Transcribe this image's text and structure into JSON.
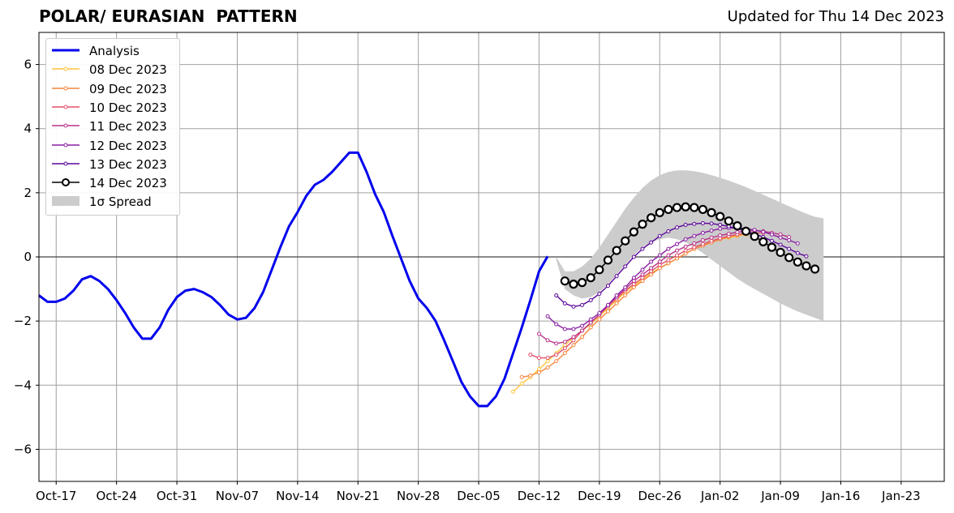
{
  "header": {
    "title": "POLAR/ EURASIAN  PATTERN",
    "updated": "Updated for Thu 14 Dec 2023"
  },
  "chart_data": {
    "type": "line",
    "title": "POLAR/ EURASIAN  PATTERN",
    "xlabel": "",
    "ylabel": "",
    "xlim": [
      "2023-10-15",
      "2024-01-28"
    ],
    "ylim": [
      -7,
      7
    ],
    "grid": true,
    "legend_position": "upper-left",
    "x_ticks": [
      "Oct-17",
      "Oct-24",
      "Oct-31",
      "Nov-07",
      "Nov-14",
      "Nov-21",
      "Nov-28",
      "Dec-05",
      "Dec-12",
      "Dec-19",
      "Dec-26",
      "Jan-02",
      "Jan-09",
      "Jan-16",
      "Jan-23"
    ],
    "y_ticks": [
      "−6",
      "−4",
      "−2",
      "0",
      "2",
      "4",
      "6"
    ],
    "series": [
      {
        "name": "Analysis",
        "color": "#0000ee",
        "marker": "none",
        "x": [
          "2023-10-15",
          "2023-10-16",
          "2023-10-17",
          "2023-10-18",
          "2023-10-19",
          "2023-10-20",
          "2023-10-21",
          "2023-10-22",
          "2023-10-23",
          "2023-10-24",
          "2023-10-25",
          "2023-10-26",
          "2023-10-27",
          "2023-10-28",
          "2023-10-29",
          "2023-10-30",
          "2023-10-31",
          "2023-11-01",
          "2023-11-02",
          "2023-11-03",
          "2023-11-04",
          "2023-11-05",
          "2023-11-06",
          "2023-11-07",
          "2023-11-08",
          "2023-11-09",
          "2023-11-10",
          "2023-11-11",
          "2023-11-12",
          "2023-11-13",
          "2023-11-14",
          "2023-11-15",
          "2023-11-16",
          "2023-11-17",
          "2023-11-18",
          "2023-11-19",
          "2023-11-20",
          "2023-11-21",
          "2023-11-22",
          "2023-11-23",
          "2023-11-24",
          "2023-11-25",
          "2023-11-26",
          "2023-11-27",
          "2023-11-28",
          "2023-11-29",
          "2023-11-30",
          "2023-12-01",
          "2023-12-02",
          "2023-12-03",
          "2023-12-04",
          "2023-12-05",
          "2023-12-06",
          "2023-12-07",
          "2023-12-08",
          "2023-12-09",
          "2023-12-10",
          "2023-12-11",
          "2023-12-12",
          "2023-12-13",
          "2023-12-14"
        ],
        "values": [
          -1.2,
          -1.4,
          -1.4,
          -1.3,
          -1.05,
          -0.7,
          -0.6,
          -0.75,
          -1.0,
          -1.35,
          -1.75,
          -2.2,
          -2.55,
          -2.55,
          -2.2,
          -1.65,
          -1.25,
          -1.05,
          -1.0,
          -1.1,
          -1.25,
          -1.5,
          -1.8,
          -1.95,
          -1.9,
          -1.6,
          -1.1,
          -0.4,
          0.3,
          0.95,
          1.4,
          1.9,
          2.25,
          2.4,
          2.65,
          2.95,
          3.25,
          3.25,
          2.65,
          1.95,
          1.4,
          0.65,
          -0.05,
          -0.75,
          -1.3,
          -1.6,
          -2.0,
          -2.6,
          -3.25,
          -3.9,
          -4.35,
          -4.65,
          -4.65,
          -4.35,
          -3.8,
          -3.0,
          -2.2,
          -1.35,
          -0.45,
          0.02,
          null
        ]
      },
      {
        "name": "08 Dec 2023",
        "color": "#fdc43a",
        "marker": "dot",
        "x": [
          "2023-12-09",
          "2023-12-10",
          "2023-12-11",
          "2023-12-12",
          "2023-12-13",
          "2023-12-14",
          "2023-12-15",
          "2023-12-16",
          "2023-12-17",
          "2023-12-18",
          "2023-12-19",
          "2023-12-20",
          "2023-12-21",
          "2023-12-22",
          "2023-12-23",
          "2023-12-24",
          "2023-12-25",
          "2023-12-26",
          "2023-12-27",
          "2023-12-28",
          "2023-12-29",
          "2023-12-30",
          "2023-12-31",
          "2024-01-01",
          "2024-01-02",
          "2024-01-03",
          "2024-01-04",
          "2024-01-05"
        ],
        "values": [
          -4.2,
          -3.95,
          -3.75,
          -3.5,
          -3.25,
          -3.0,
          -2.75,
          -2.5,
          -2.3,
          -2.1,
          -1.85,
          -1.6,
          -1.35,
          -1.1,
          -0.9,
          -0.7,
          -0.5,
          -0.35,
          -0.2,
          -0.05,
          0.1,
          0.25,
          0.35,
          0.45,
          0.55,
          0.6,
          0.65,
          0.7
        ]
      },
      {
        "name": "09 Dec 2023",
        "color": "#f5853d",
        "marker": "dot",
        "x": [
          "2023-12-10",
          "2023-12-11",
          "2023-12-12",
          "2023-12-13",
          "2023-12-14",
          "2023-12-15",
          "2023-12-16",
          "2023-12-17",
          "2023-12-18",
          "2023-12-19",
          "2023-12-20",
          "2023-12-21",
          "2023-12-22",
          "2023-12-23",
          "2023-12-24",
          "2023-12-25",
          "2023-12-26",
          "2023-12-27",
          "2023-12-28",
          "2023-12-29",
          "2023-12-30",
          "2023-12-31",
          "2024-01-01",
          "2024-01-02",
          "2024-01-03",
          "2024-01-04",
          "2024-01-05",
          "2024-01-06"
        ],
        "values": [
          -3.75,
          -3.7,
          -3.6,
          -3.45,
          -3.25,
          -3.0,
          -2.75,
          -2.5,
          -2.2,
          -1.95,
          -1.7,
          -1.45,
          -1.2,
          -0.95,
          -0.75,
          -0.55,
          -0.35,
          -0.2,
          -0.05,
          0.1,
          0.25,
          0.35,
          0.45,
          0.55,
          0.62,
          0.68,
          0.72,
          0.75
        ]
      },
      {
        "name": "10 Dec 2023",
        "color": "#e2506b",
        "marker": "dot",
        "x": [
          "2023-12-11",
          "2023-12-12",
          "2023-12-13",
          "2023-12-14",
          "2023-12-15",
          "2023-12-16",
          "2023-12-17",
          "2023-12-18",
          "2023-12-19",
          "2023-12-20",
          "2023-12-21",
          "2023-12-22",
          "2023-12-23",
          "2023-12-24",
          "2023-12-25",
          "2023-12-26",
          "2023-12-27",
          "2023-12-28",
          "2023-12-29",
          "2023-12-30",
          "2023-12-31",
          "2024-01-01",
          "2024-01-02",
          "2024-01-03",
          "2024-01-04",
          "2024-01-05",
          "2024-01-06",
          "2024-01-07"
        ],
        "values": [
          -3.05,
          -3.15,
          -3.15,
          -3.05,
          -2.85,
          -2.6,
          -2.3,
          -2.05,
          -1.8,
          -1.55,
          -1.3,
          -1.05,
          -0.85,
          -0.65,
          -0.45,
          -0.25,
          -0.1,
          0.05,
          0.2,
          0.3,
          0.4,
          0.5,
          0.58,
          0.65,
          0.7,
          0.73,
          0.75,
          0.75
        ]
      },
      {
        "name": "11 Dec 2023",
        "color": "#b83289",
        "marker": "dot",
        "x": [
          "2023-12-12",
          "2023-12-13",
          "2023-12-14",
          "2023-12-15",
          "2023-12-16",
          "2023-12-17",
          "2023-12-18",
          "2023-12-19",
          "2023-12-20",
          "2023-12-21",
          "2023-12-22",
          "2023-12-23",
          "2023-12-24",
          "2023-12-25",
          "2023-12-26",
          "2023-12-27",
          "2023-12-28",
          "2023-12-29",
          "2023-12-30",
          "2023-12-31",
          "2024-01-01",
          "2024-01-02",
          "2024-01-03",
          "2024-01-04",
          "2024-01-05",
          "2024-01-06",
          "2024-01-07",
          "2024-01-08",
          "2024-01-09",
          "2024-01-10"
        ],
        "values": [
          -2.4,
          -2.6,
          -2.7,
          -2.65,
          -2.5,
          -2.3,
          -2.05,
          -1.8,
          -1.5,
          -1.25,
          -1.0,
          -0.75,
          -0.55,
          -0.35,
          -0.15,
          0.05,
          0.2,
          0.32,
          0.42,
          0.52,
          0.6,
          0.67,
          0.72,
          0.77,
          0.8,
          0.82,
          0.8,
          0.75,
          0.7,
          0.62
        ]
      },
      {
        "name": "12 Dec 2023",
        "color": "#8b1fa4",
        "marker": "dot",
        "x": [
          "2023-12-13",
          "2023-12-14",
          "2023-12-15",
          "2023-12-16",
          "2023-12-17",
          "2023-12-18",
          "2023-12-19",
          "2023-12-20",
          "2023-12-21",
          "2023-12-22",
          "2023-12-23",
          "2023-12-24",
          "2023-12-25",
          "2023-12-26",
          "2023-12-27",
          "2023-12-28",
          "2023-12-29",
          "2023-12-30",
          "2023-12-31",
          "2024-01-01",
          "2024-01-02",
          "2024-01-03",
          "2024-01-04",
          "2024-01-05",
          "2024-01-06",
          "2024-01-07",
          "2024-01-08",
          "2024-01-09",
          "2024-01-10",
          "2024-01-11"
        ],
        "values": [
          -1.85,
          -2.1,
          -2.25,
          -2.25,
          -2.15,
          -1.95,
          -1.75,
          -1.5,
          -1.2,
          -0.95,
          -0.65,
          -0.4,
          -0.15,
          0.05,
          0.25,
          0.4,
          0.55,
          0.65,
          0.75,
          0.82,
          0.88,
          0.9,
          0.9,
          0.88,
          0.84,
          0.78,
          0.7,
          0.6,
          0.52,
          0.42
        ]
      },
      {
        "name": "13 Dec 2023",
        "color": "#5b079a",
        "marker": "dot",
        "x": [
          "2023-12-14",
          "2023-12-15",
          "2023-12-16",
          "2023-12-17",
          "2023-12-18",
          "2023-12-19",
          "2023-12-20",
          "2023-12-21",
          "2023-12-22",
          "2023-12-23",
          "2023-12-24",
          "2023-12-25",
          "2023-12-26",
          "2023-12-27",
          "2023-12-28",
          "2023-12-29",
          "2023-12-30",
          "2023-12-31",
          "2024-01-01",
          "2024-01-02",
          "2024-01-03",
          "2024-01-04",
          "2024-01-05",
          "2024-01-06",
          "2024-01-07",
          "2024-01-08",
          "2024-01-09",
          "2024-01-10",
          "2024-01-11",
          "2024-01-12"
        ],
        "values": [
          -1.2,
          -1.45,
          -1.55,
          -1.5,
          -1.35,
          -1.15,
          -0.9,
          -0.6,
          -0.3,
          0.0,
          0.25,
          0.45,
          0.65,
          0.8,
          0.92,
          1.0,
          1.03,
          1.05,
          1.04,
          1.0,
          0.95,
          0.88,
          0.8,
          0.72,
          0.62,
          0.5,
          0.38,
          0.25,
          0.12,
          0.02
        ]
      },
      {
        "name": "14 Dec 2023",
        "color": "#000000",
        "marker": "circle",
        "x": [
          "2023-12-15",
          "2023-12-16",
          "2023-12-17",
          "2023-12-18",
          "2023-12-19",
          "2023-12-20",
          "2023-12-21",
          "2023-12-22",
          "2023-12-23",
          "2023-12-24",
          "2023-12-25",
          "2023-12-26",
          "2023-12-27",
          "2023-12-28",
          "2023-12-29",
          "2023-12-30",
          "2023-12-31",
          "2024-01-01",
          "2024-01-02",
          "2024-01-03",
          "2024-01-04",
          "2024-01-05",
          "2024-01-06",
          "2024-01-07",
          "2024-01-08",
          "2024-01-09",
          "2024-01-10",
          "2024-01-11",
          "2024-01-12",
          "2024-01-13",
          "2024-01-14"
        ],
        "values": [
          -0.75,
          -0.85,
          -0.8,
          -0.65,
          -0.4,
          -0.1,
          0.2,
          0.5,
          0.78,
          1.02,
          1.22,
          1.38,
          1.48,
          1.54,
          1.56,
          1.54,
          1.48,
          1.38,
          1.26,
          1.12,
          0.97,
          0.8,
          0.64,
          0.47,
          0.3,
          0.14,
          -0.02,
          -0.16,
          -0.28,
          -0.38,
          null
        ]
      }
    ],
    "spread": {
      "name": "1σ Spread",
      "color": "#cccccc",
      "x": [
        "2023-12-14",
        "2023-12-15",
        "2023-12-16",
        "2023-12-17",
        "2023-12-18",
        "2023-12-19",
        "2023-12-20",
        "2023-12-21",
        "2023-12-22",
        "2023-12-23",
        "2023-12-24",
        "2023-12-25",
        "2023-12-26",
        "2023-12-27",
        "2023-12-28",
        "2023-12-29",
        "2023-12-30",
        "2023-12-31",
        "2024-01-01",
        "2024-01-02",
        "2024-01-03",
        "2024-01-04",
        "2024-01-05",
        "2024-01-06",
        "2024-01-07",
        "2024-01-08",
        "2024-01-09",
        "2024-01-10",
        "2024-01-11",
        "2024-01-12",
        "2024-01-13",
        "2024-01-14"
      ],
      "upper": [
        0.0,
        -0.45,
        -0.45,
        -0.3,
        -0.05,
        0.3,
        0.7,
        1.1,
        1.5,
        1.85,
        2.15,
        2.38,
        2.55,
        2.65,
        2.7,
        2.7,
        2.67,
        2.62,
        2.55,
        2.47,
        2.38,
        2.28,
        2.18,
        2.06,
        1.94,
        1.82,
        1.7,
        1.58,
        1.46,
        1.35,
        1.25,
        1.2
      ],
      "lower": [
        -0.1,
        -1.0,
        -1.2,
        -1.3,
        -1.25,
        -1.1,
        -0.85,
        -0.55,
        -0.25,
        0.05,
        0.3,
        0.45,
        0.55,
        0.6,
        0.55,
        0.45,
        0.3,
        0.12,
        -0.08,
        -0.28,
        -0.48,
        -0.68,
        -0.85,
        -1.0,
        -1.15,
        -1.3,
        -1.45,
        -1.58,
        -1.7,
        -1.8,
        -1.9,
        -2.0
      ]
    },
    "legend": [
      {
        "label": "Analysis",
        "style": "thick-line",
        "color": "#0000ee"
      },
      {
        "label": "08 Dec 2023",
        "style": "dot-line",
        "color": "#fdc43a"
      },
      {
        "label": "09 Dec 2023",
        "style": "dot-line",
        "color": "#f5853d"
      },
      {
        "label": "10 Dec 2023",
        "style": "dot-line",
        "color": "#e2506b"
      },
      {
        "label": "11 Dec 2023",
        "style": "dot-line",
        "color": "#b83289"
      },
      {
        "label": "12 Dec 2023",
        "style": "dot-line",
        "color": "#8b1fa4"
      },
      {
        "label": "13 Dec 2023",
        "style": "dot-line",
        "color": "#5b079a"
      },
      {
        "label": "14 Dec 2023",
        "style": "circle-line",
        "color": "#000000"
      },
      {
        "label": "1σ Spread",
        "style": "patch",
        "color": "#cccccc"
      }
    ]
  }
}
